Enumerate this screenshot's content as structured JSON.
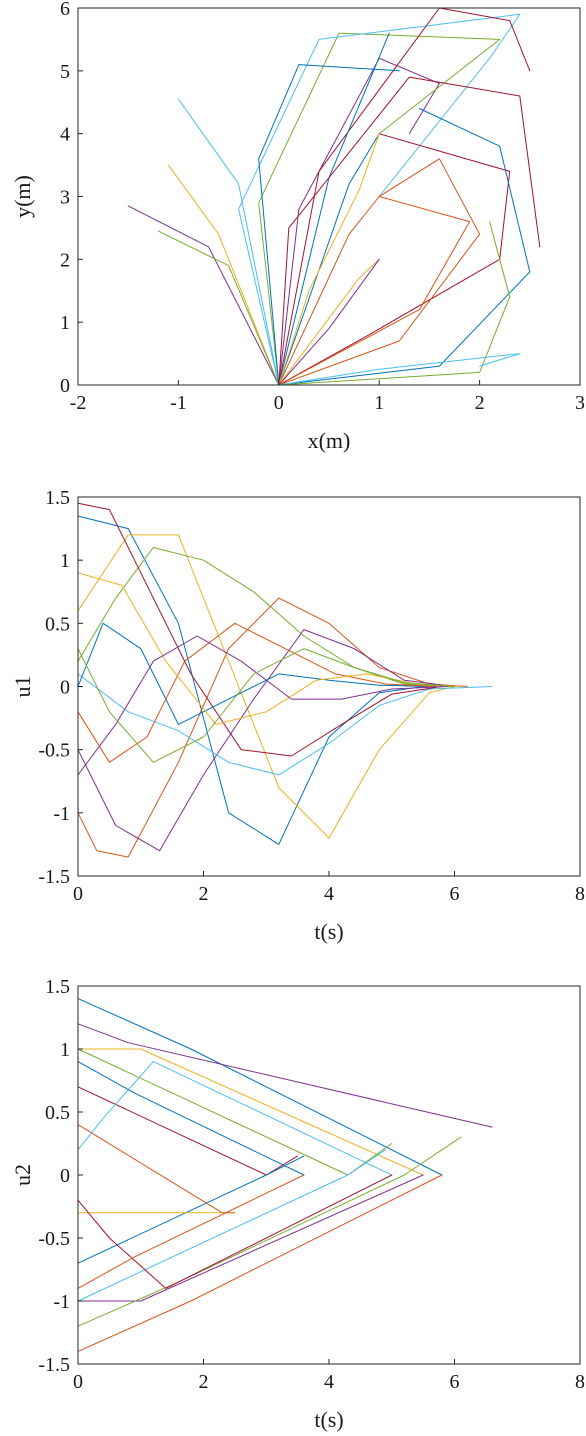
{
  "palette": [
    "#0072BD",
    "#D95319",
    "#EDB120",
    "#7E2F8E",
    "#77AC30",
    "#4DBEEE",
    "#A2142F"
  ],
  "chart_data": [
    {
      "type": "line",
      "xlabel": "x(m)",
      "ylabel": "y(m)",
      "xlim": [
        -2,
        3
      ],
      "ylim": [
        0,
        6
      ],
      "xticks": [
        "-2",
        "-1",
        "0",
        "1",
        "2",
        "3"
      ],
      "yticks": [
        "0",
        "1",
        "2",
        "3",
        "4",
        "5",
        "6"
      ],
      "grid": false,
      "legend": "none",
      "series": [
        {
          "x": [
            0,
            0.7,
            1.0
          ],
          "y": [
            0,
            3.2,
            4.0
          ]
        },
        {
          "x": [
            0,
            0.7,
            1.0
          ],
          "y": [
            0,
            2.4,
            3.0
          ]
        },
        {
          "x": [
            0,
            0.8,
            1.0
          ],
          "y": [
            0,
            1.7,
            2.0
          ]
        },
        {
          "x": [
            0,
            0.2,
            1.0,
            1.6,
            1.3
          ],
          "y": [
            0,
            2.8,
            5.2,
            4.8,
            4.0
          ]
        },
        {
          "x": [
            0,
            -0.2,
            0.6,
            2.2,
            1.0
          ],
          "y": [
            0,
            2.9,
            5.6,
            5.5,
            4.0
          ]
        },
        {
          "x": [
            0,
            -0.4,
            0.4,
            2.4,
            2.1,
            1.0
          ],
          "y": [
            0,
            2.8,
            5.5,
            5.9,
            5.2,
            3.0
          ]
        },
        {
          "x": [
            0,
            0.9,
            2.2,
            2.3,
            1.0
          ],
          "y": [
            0,
            0.8,
            2.0,
            3.4,
            4.0
          ]
        },
        {
          "x": [
            0,
            1.6,
            2.5,
            2.2,
            1.4
          ],
          "y": [
            0,
            0.3,
            1.8,
            3.8,
            4.4
          ]
        },
        {
          "x": [
            0,
            1.2,
            2.0,
            1.6,
            1.0
          ],
          "y": [
            0,
            0.7,
            2.4,
            3.6,
            3.0
          ]
        },
        {
          "x": [
            0,
            -0.6,
            -1.1
          ],
          "y": [
            0,
            2.4,
            3.5
          ]
        },
        {
          "x": [
            0,
            -0.7,
            -1.5
          ],
          "y": [
            0,
            2.2,
            2.85
          ]
        },
        {
          "x": [
            0,
            -0.5,
            -1.2
          ],
          "y": [
            0,
            1.9,
            2.45
          ]
        },
        {
          "x": [
            0,
            -0.4,
            -1.0
          ],
          "y": [
            0,
            3.2,
            4.55
          ]
        },
        {
          "x": [
            0,
            0.4,
            1.6,
            2.3,
            2.5
          ],
          "y": [
            0,
            3.4,
            6.0,
            5.8,
            5.0
          ]
        },
        {
          "x": [
            0,
            0.5,
            1.1
          ],
          "y": [
            0,
            3.3,
            5.6
          ]
        },
        {
          "x": [
            0,
            1.4,
            1.9,
            1.0
          ],
          "y": [
            0,
            1.2,
            2.6,
            3.0
          ]
        },
        {
          "x": [
            0,
            0.3,
            0.8,
            1.0
          ],
          "y": [
            0,
            1.5,
            3.1,
            4.0
          ]
        },
        {
          "x": [
            0,
            0.5,
            1.0
          ],
          "y": [
            0,
            0.9,
            2.0
          ]
        },
        {
          "x": [
            0,
            2.0,
            2.3,
            2.1
          ],
          "y": [
            0,
            0.2,
            1.4,
            2.6
          ]
        },
        {
          "x": [
            0,
            1.0,
            2.4,
            2.0
          ],
          "y": [
            0,
            0.25,
            0.5,
            0.3
          ]
        },
        {
          "x": [
            0,
            0.1,
            1.3,
            2.4,
            2.6
          ],
          "y": [
            0,
            2.5,
            4.9,
            4.6,
            2.2
          ]
        },
        {
          "x": [
            0,
            -0.2,
            0.2,
            1.2
          ],
          "y": [
            0,
            3.6,
            5.1,
            5.0
          ]
        }
      ]
    },
    {
      "type": "line",
      "xlabel": "t(s)",
      "ylabel": "u1",
      "xlim": [
        0,
        8
      ],
      "ylim": [
        -1.5,
        1.5
      ],
      "xticks": [
        "0",
        "2",
        "4",
        "6",
        "8"
      ],
      "yticks": [
        "-1.5",
        "-1",
        "-0.5",
        "0",
        "0.5",
        "1",
        "1.5"
      ],
      "grid": false,
      "legend": "none",
      "series": [
        {
          "x": [
            0,
            0.8,
            1.6,
            2.4,
            3.2,
            4.0,
            4.8,
            5.5
          ],
          "y": [
            1.35,
            1.25,
            0.5,
            -1.0,
            -1.25,
            -0.4,
            -0.05,
            0
          ]
        },
        {
          "x": [
            0,
            0.3,
            0.8,
            1.6,
            2.4,
            3.2,
            4.0,
            4.8,
            5.6,
            6.2
          ],
          "y": [
            -1.0,
            -1.3,
            -1.35,
            -0.6,
            0.3,
            0.7,
            0.5,
            0.15,
            0.02,
            0
          ]
        },
        {
          "x": [
            0,
            0.8,
            1.6,
            2.4,
            3.2,
            4.0,
            4.8,
            5.6,
            6.0
          ],
          "y": [
            0.6,
            1.2,
            1.2,
            0.2,
            -0.8,
            -1.2,
            -0.5,
            -0.05,
            0
          ]
        },
        {
          "x": [
            0,
            0.6,
            1.3,
            2.0,
            2.8,
            3.6,
            4.4,
            5.2,
            6.0
          ],
          "y": [
            -0.5,
            -1.1,
            -1.3,
            -0.7,
            -0.1,
            0.45,
            0.3,
            0.05,
            0
          ]
        },
        {
          "x": [
            0,
            0.6,
            1.2,
            2.0,
            2.8,
            3.6,
            4.4,
            5.2,
            6.0
          ],
          "y": [
            0.2,
            0.7,
            1.1,
            1.0,
            0.75,
            0.4,
            0.15,
            0.02,
            0
          ]
        },
        {
          "x": [
            0,
            0.8,
            1.6,
            2.4,
            3.2,
            4.0,
            4.8,
            5.6,
            6.6
          ],
          "y": [
            0.1,
            -0.2,
            -0.35,
            -0.6,
            -0.7,
            -0.45,
            -0.15,
            -0.02,
            0
          ]
        },
        {
          "x": [
            0,
            0.5,
            1.0,
            1.8,
            2.6,
            3.4,
            4.2,
            5.0,
            5.8
          ],
          "y": [
            1.45,
            1.4,
            0.9,
            0.1,
            -0.5,
            -0.55,
            -0.3,
            -0.06,
            0
          ]
        },
        {
          "x": [
            0,
            0.4,
            1.0,
            1.6,
            2.4,
            3.2,
            4.0,
            4.8,
            5.6
          ],
          "y": [
            0,
            0.5,
            0.3,
            -0.3,
            -0.1,
            0.1,
            0.05,
            0.01,
            0
          ]
        },
        {
          "x": [
            0,
            0.5,
            1.1,
            1.7,
            2.5,
            3.3,
            4.1,
            4.9,
            5.7
          ],
          "y": [
            -0.2,
            -0.6,
            -0.4,
            0.2,
            0.5,
            0.3,
            0.1,
            0.02,
            0
          ]
        },
        {
          "x": [
            0,
            0.7,
            1.4,
            2.2,
            3.0,
            3.8,
            4.6,
            5.4,
            6.1
          ],
          "y": [
            0.9,
            0.8,
            0.2,
            -0.3,
            -0.2,
            0.05,
            0.1,
            0.02,
            0
          ]
        },
        {
          "x": [
            0,
            0.6,
            1.2,
            1.9,
            2.6,
            3.4,
            4.2,
            5.0,
            5.9
          ],
          "y": [
            -0.7,
            -0.3,
            0.2,
            0.4,
            0.2,
            -0.1,
            -0.1,
            -0.02,
            0
          ]
        },
        {
          "x": [
            0,
            0.5,
            1.2,
            2.0,
            2.8,
            3.6,
            4.4,
            5.2,
            6.0
          ],
          "y": [
            0.3,
            -0.2,
            -0.6,
            -0.4,
            0.1,
            0.3,
            0.15,
            0.03,
            0
          ]
        }
      ]
    },
    {
      "type": "line",
      "xlabel": "t(s)",
      "ylabel": "u2",
      "xlim": [
        0,
        8
      ],
      "ylim": [
        -1.5,
        1.5
      ],
      "xticks": [
        "0",
        "2",
        "4",
        "6",
        "8"
      ],
      "yticks": [
        "-1.5",
        "-1",
        "-0.5",
        "0",
        "0.5",
        "1",
        "1.5"
      ],
      "grid": false,
      "legend": "none",
      "series": [
        {
          "x": [
            0,
            1.8,
            5.8
          ],
          "y": [
            1.4,
            1.0,
            0
          ]
        },
        {
          "x": [
            0,
            1.8,
            5.8
          ],
          "y": [
            -1.4,
            -1.0,
            0
          ]
        },
        {
          "x": [
            0,
            1.0,
            5.5
          ],
          "y": [
            1.0,
            1.0,
            0
          ]
        },
        {
          "x": [
            0,
            1.0,
            5.5
          ],
          "y": [
            -1.0,
            -1.0,
            0
          ]
        },
        {
          "x": [
            0,
            4.3,
            5.0
          ],
          "y": [
            1.0,
            0,
            0.25
          ]
        },
        {
          "x": [
            0,
            4.3,
            4.9
          ],
          "y": [
            -1.0,
            0,
            0.2
          ]
        },
        {
          "x": [
            0,
            3.0,
            3.5
          ],
          "y": [
            0.7,
            0,
            0.15
          ]
        },
        {
          "x": [
            0,
            3.0,
            3.6
          ],
          "y": [
            -0.7,
            0,
            0.15
          ]
        },
        {
          "x": [
            0,
            2.3,
            2.5
          ],
          "y": [
            0.4,
            -0.3,
            -0.3
          ]
        },
        {
          "x": [
            0,
            2.3
          ],
          "y": [
            -0.3,
            -0.3
          ]
        },
        {
          "x": [
            0,
            0.8,
            6.6
          ],
          "y": [
            1.2,
            1.05,
            0.38
          ]
        },
        {
          "x": [
            0,
            1.6,
            5.2,
            6.1
          ],
          "y": [
            -1.2,
            -0.85,
            0,
            0.3
          ]
        },
        {
          "x": [
            0,
            0.4,
            1.2,
            5.0
          ],
          "y": [
            0.2,
            0.45,
            0.9,
            0
          ]
        },
        {
          "x": [
            0,
            0.5,
            1.4,
            5.0
          ],
          "y": [
            -0.2,
            -0.5,
            -0.9,
            0
          ]
        },
        {
          "x": [
            0,
            0.9,
            3.6
          ],
          "y": [
            0.9,
            0.65,
            0
          ]
        },
        {
          "x": [
            0,
            0.9,
            3.6
          ],
          "y": [
            -0.9,
            -0.65,
            0
          ]
        }
      ]
    }
  ]
}
